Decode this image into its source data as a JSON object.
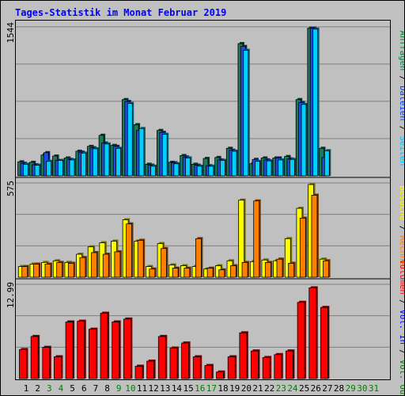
{
  "chart_data": {
    "type": "bar",
    "title": "Tages-Statistik im Monat Februar 2019",
    "categories": [
      "1",
      "2",
      "3",
      "4",
      "5",
      "6",
      "7",
      "8",
      "9",
      "10",
      "11",
      "12",
      "13",
      "14",
      "15",
      "16",
      "17",
      "18",
      "19",
      "20",
      "21",
      "22",
      "23",
      "24",
      "25",
      "26",
      "27",
      "28",
      "29",
      "30",
      "31"
    ],
    "day_colors": [
      "#000000",
      "#000000",
      "#008000",
      "#008000",
      "#000000",
      "#000000",
      "#000000",
      "#000000",
      "#008000",
      "#008000",
      "#000000",
      "#000000",
      "#000000",
      "#000000",
      "#000000",
      "#008000",
      "#008000",
      "#000000",
      "#000000",
      "#000000",
      "#000000",
      "#000000",
      "#008000",
      "#008000",
      "#000000",
      "#000000",
      "#000000",
      "#000000",
      "#008000",
      "#008000",
      "#008000"
    ],
    "panels": [
      {
        "name": "anfragen-dateien-seiten",
        "ymax": 1544,
        "ymax_label": "1544",
        "legend": [
          {
            "label": "Anfragen",
            "color": "#008040"
          },
          {
            "label": "Dateien",
            "color": "#0040ff"
          },
          {
            "label": "Seiten",
            "color": "#00c0ff"
          }
        ],
        "series": [
          {
            "name": "Anfragen",
            "color": "#1a7a5a",
            "values": [
              145,
              140,
              215,
              205,
              185,
              255,
              305,
              420,
              315,
              790,
              530,
              120,
              470,
              140,
              210,
              120,
              180,
              190,
              285,
              1370,
              125,
              185,
              185,
              200,
              790,
              1530,
              285,
              null,
              null,
              null,
              null
            ]
          },
          {
            "name": "Dateien",
            "color": "#1f4fe0",
            "values": [
              130,
              115,
              240,
              160,
              170,
              245,
              290,
              340,
              305,
              770,
              470,
              110,
              450,
              135,
              195,
              110,
              105,
              165,
              265,
              1340,
              170,
              165,
              185,
              175,
              760,
              1530,
              190,
              null,
              null,
              null,
              null
            ]
          },
          {
            "name": "Seiten",
            "color": "#00d0ff",
            "values": [
              120,
              110,
              150,
              160,
              165,
              235,
              280,
              330,
              285,
              750,
              490,
              100,
              430,
              125,
              185,
              100,
              100,
              160,
              255,
              1300,
              150,
              155,
              165,
              170,
              740,
              1520,
              260,
              null,
              null,
              null,
              null
            ]
          }
        ]
      },
      {
        "name": "besuche-rechner",
        "ymax": 575,
        "ymax_label": "575",
        "legend": [
          {
            "label": "Besuche",
            "color": "#ffff00"
          },
          {
            "label": "Rechner",
            "color": "#ff8000"
          }
        ],
        "series": [
          {
            "name": "Besuche",
            "color": "#ffff00",
            "values": [
              65,
              80,
              90,
              100,
              90,
              140,
              185,
              210,
              220,
              350,
              220,
              65,
              205,
              75,
              70,
              65,
              50,
              70,
              100,
              470,
              95,
              105,
              100,
              235,
              420,
              565,
              110,
              null,
              null,
              null,
              null
            ]
          },
          {
            "name": "Rechner",
            "color": "#ff8000",
            "values": [
              65,
              80,
              80,
              90,
              85,
              120,
              150,
              140,
              155,
              325,
              225,
              50,
              175,
              55,
              55,
              235,
              55,
              45,
              70,
              90,
              465,
              90,
              110,
              85,
              360,
              500,
              100,
              null,
              null,
              null,
              null
            ]
          }
        ]
      },
      {
        "name": "volumen",
        "ymax": 12.99,
        "ymax_label": "12.99",
        "legend": [
          {
            "label": "Volumen",
            "color": "#ff0000"
          },
          {
            "label": "Vol. In",
            "color": "#0000ff"
          },
          {
            "label": "Vol. Out",
            "color": "#008000"
          }
        ],
        "series": [
          {
            "name": "Volumen",
            "color": "#ff0000",
            "values": [
              4.0,
              5.8,
              4.3,
              3.0,
              7.8,
              7.9,
              6.8,
              9.0,
              7.8,
              8.2,
              1.7,
              2.4,
              5.8,
              4.2,
              4.9,
              3.0,
              1.8,
              0.9,
              3.0,
              6.3,
              3.8,
              2.9,
              3.3,
              3.8,
              10.5,
              12.5,
              9.8,
              null,
              null,
              null,
              null
            ]
          }
        ]
      }
    ]
  }
}
